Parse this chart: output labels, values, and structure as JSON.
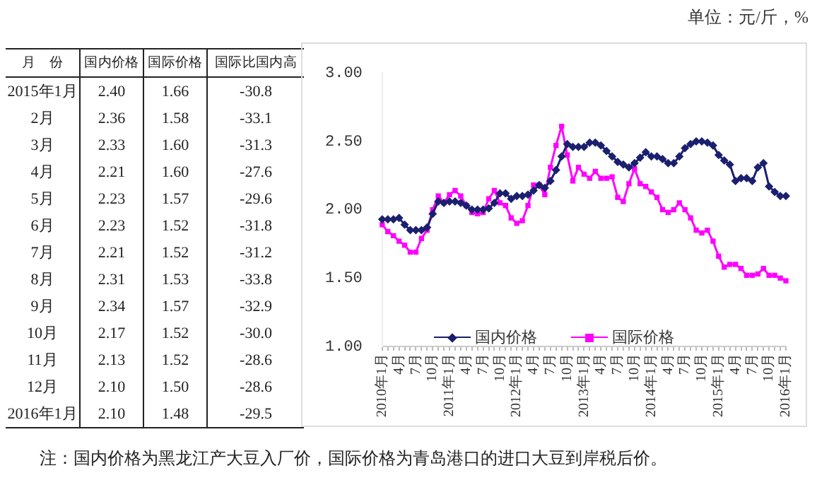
{
  "chart_data": [
    {
      "type": "heatmap",
      "ylabel": "月　份",
      "categories": [
        "国内价格",
        "国际价格",
        "国际比国内高"
      ],
      "y_categories": [
        "2015年1月",
        "2月",
        "3月",
        "4月",
        "5月",
        "6月",
        "7月",
        "8月",
        "9月",
        "10月",
        "11月",
        "12月",
        "2016年1月"
      ],
      "cells": [
        [
          2.4,
          1.66,
          -30.8
        ],
        [
          2.36,
          1.58,
          -33.1
        ],
        [
          2.33,
          1.6,
          -31.3
        ],
        [
          2.21,
          1.6,
          -27.6
        ],
        [
          2.23,
          1.57,
          -29.6
        ],
        [
          2.23,
          1.52,
          -31.8
        ],
        [
          2.21,
          1.52,
          -31.2
        ],
        [
          2.31,
          1.53,
          -33.8
        ],
        [
          2.34,
          1.57,
          -32.9
        ],
        [
          2.17,
          1.52,
          -30.0
        ],
        [
          2.13,
          1.52,
          -28.6
        ],
        [
          2.1,
          1.5,
          -28.6
        ],
        [
          2.1,
          1.48,
          -29.5
        ]
      ],
      "cell_labels": [
        [
          "2.40",
          "1.66",
          "-30.8"
        ],
        [
          "2.36",
          "1.58",
          "-33.1"
        ],
        [
          "2.33",
          "1.60",
          "-31.3"
        ],
        [
          "2.21",
          "1.60",
          "-27.6"
        ],
        [
          "2.23",
          "1.57",
          "-29.6"
        ],
        [
          "2.23",
          "1.52",
          "-31.8"
        ],
        [
          "2.21",
          "1.52",
          "-31.2"
        ],
        [
          "2.31",
          "1.53",
          "-33.8"
        ],
        [
          "2.34",
          "1.57",
          "-32.9"
        ],
        [
          "2.17",
          "1.52",
          "-30.0"
        ],
        [
          "2.13",
          "1.52",
          "-28.6"
        ],
        [
          "2.10",
          "1.50",
          "-28.6"
        ],
        [
          "2.10",
          "1.48",
          "-29.5"
        ]
      ],
      "annotations": [
        "单位：元/斤，%",
        "注：国内价格为黑龙江产大豆入厂价，国际价格为青岛港口的进口大豆到岸税后价。"
      ]
    },
    {
      "type": "line",
      "categories": [
        "2010年1月",
        null,
        null,
        "4月",
        null,
        null,
        "7月",
        null,
        null,
        "10月",
        null,
        null,
        "2011年1月",
        null,
        null,
        "4月",
        null,
        null,
        "7月",
        null,
        null,
        "10月",
        null,
        null,
        "2012年1月",
        null,
        null,
        "4月",
        null,
        null,
        "7月",
        null,
        null,
        "10月",
        null,
        null,
        "2013年1月",
        null,
        null,
        "4月",
        null,
        null,
        "7月",
        null,
        null,
        "10月",
        null,
        null,
        "2014年1月",
        null,
        null,
        "4月",
        null,
        null,
        "7月",
        null,
        null,
        "10月",
        null,
        null,
        "2015年1月",
        null,
        null,
        "4月",
        null,
        null,
        "7月",
        null,
        null,
        "10月",
        null,
        null,
        "2016年1月"
      ],
      "series": [
        {
          "name": "国内价格",
          "color": "#1a1f6e",
          "marker": "diamond",
          "values": [
            1.93,
            1.93,
            1.93,
            1.94,
            1.89,
            1.85,
            1.85,
            1.85,
            1.87,
            1.97,
            2.06,
            2.05,
            2.06,
            2.06,
            2.05,
            2.03,
            2.0,
            2.0,
            2.0,
            2.01,
            2.05,
            2.12,
            2.12,
            2.08,
            2.1,
            2.1,
            2.11,
            2.14,
            2.18,
            2.16,
            2.21,
            2.29,
            2.39,
            2.48,
            2.46,
            2.46,
            2.46,
            2.49,
            2.49,
            2.47,
            2.43,
            2.39,
            2.35,
            2.33,
            2.31,
            2.34,
            2.38,
            2.42,
            2.39,
            2.39,
            2.37,
            2.34,
            2.34,
            2.39,
            2.45,
            2.48,
            2.5,
            2.5,
            2.49,
            2.47,
            2.4,
            2.36,
            2.33,
            2.21,
            2.23,
            2.23,
            2.21,
            2.31,
            2.34,
            2.17,
            2.13,
            2.1,
            2.1
          ]
        },
        {
          "name": "国际价格",
          "color": "#ff00ff",
          "marker": "square",
          "values": [
            1.89,
            1.84,
            1.81,
            1.77,
            1.74,
            1.69,
            1.69,
            1.79,
            1.85,
            2.0,
            2.1,
            2.05,
            2.11,
            2.14,
            2.1,
            2.03,
            1.98,
            1.97,
            1.98,
            2.08,
            2.14,
            2.05,
            2.03,
            1.94,
            1.9,
            1.92,
            2.03,
            2.18,
            2.18,
            2.11,
            2.31,
            2.47,
            2.61,
            2.4,
            2.21,
            2.31,
            2.26,
            2.23,
            2.28,
            2.23,
            2.23,
            2.24,
            2.09,
            2.06,
            2.19,
            2.3,
            2.19,
            2.17,
            2.13,
            2.09,
            2.0,
            1.98,
            2.0,
            2.05,
            2.0,
            1.94,
            1.85,
            1.83,
            1.85,
            1.77,
            1.66,
            1.58,
            1.6,
            1.6,
            1.57,
            1.52,
            1.52,
            1.53,
            1.57,
            1.52,
            1.52,
            1.5,
            1.48
          ]
        }
      ],
      "ylim": [
        1,
        3
      ],
      "yticks": [
        {
          "value": 1,
          "label": "1.00"
        },
        {
          "value": 1.5,
          "label": "1.50"
        },
        {
          "value": 2,
          "label": "2.00"
        },
        {
          "value": 2.5,
          "label": "2.50"
        },
        {
          "value": 3,
          "label": "3.00"
        }
      ],
      "legend": "bottom"
    }
  ]
}
